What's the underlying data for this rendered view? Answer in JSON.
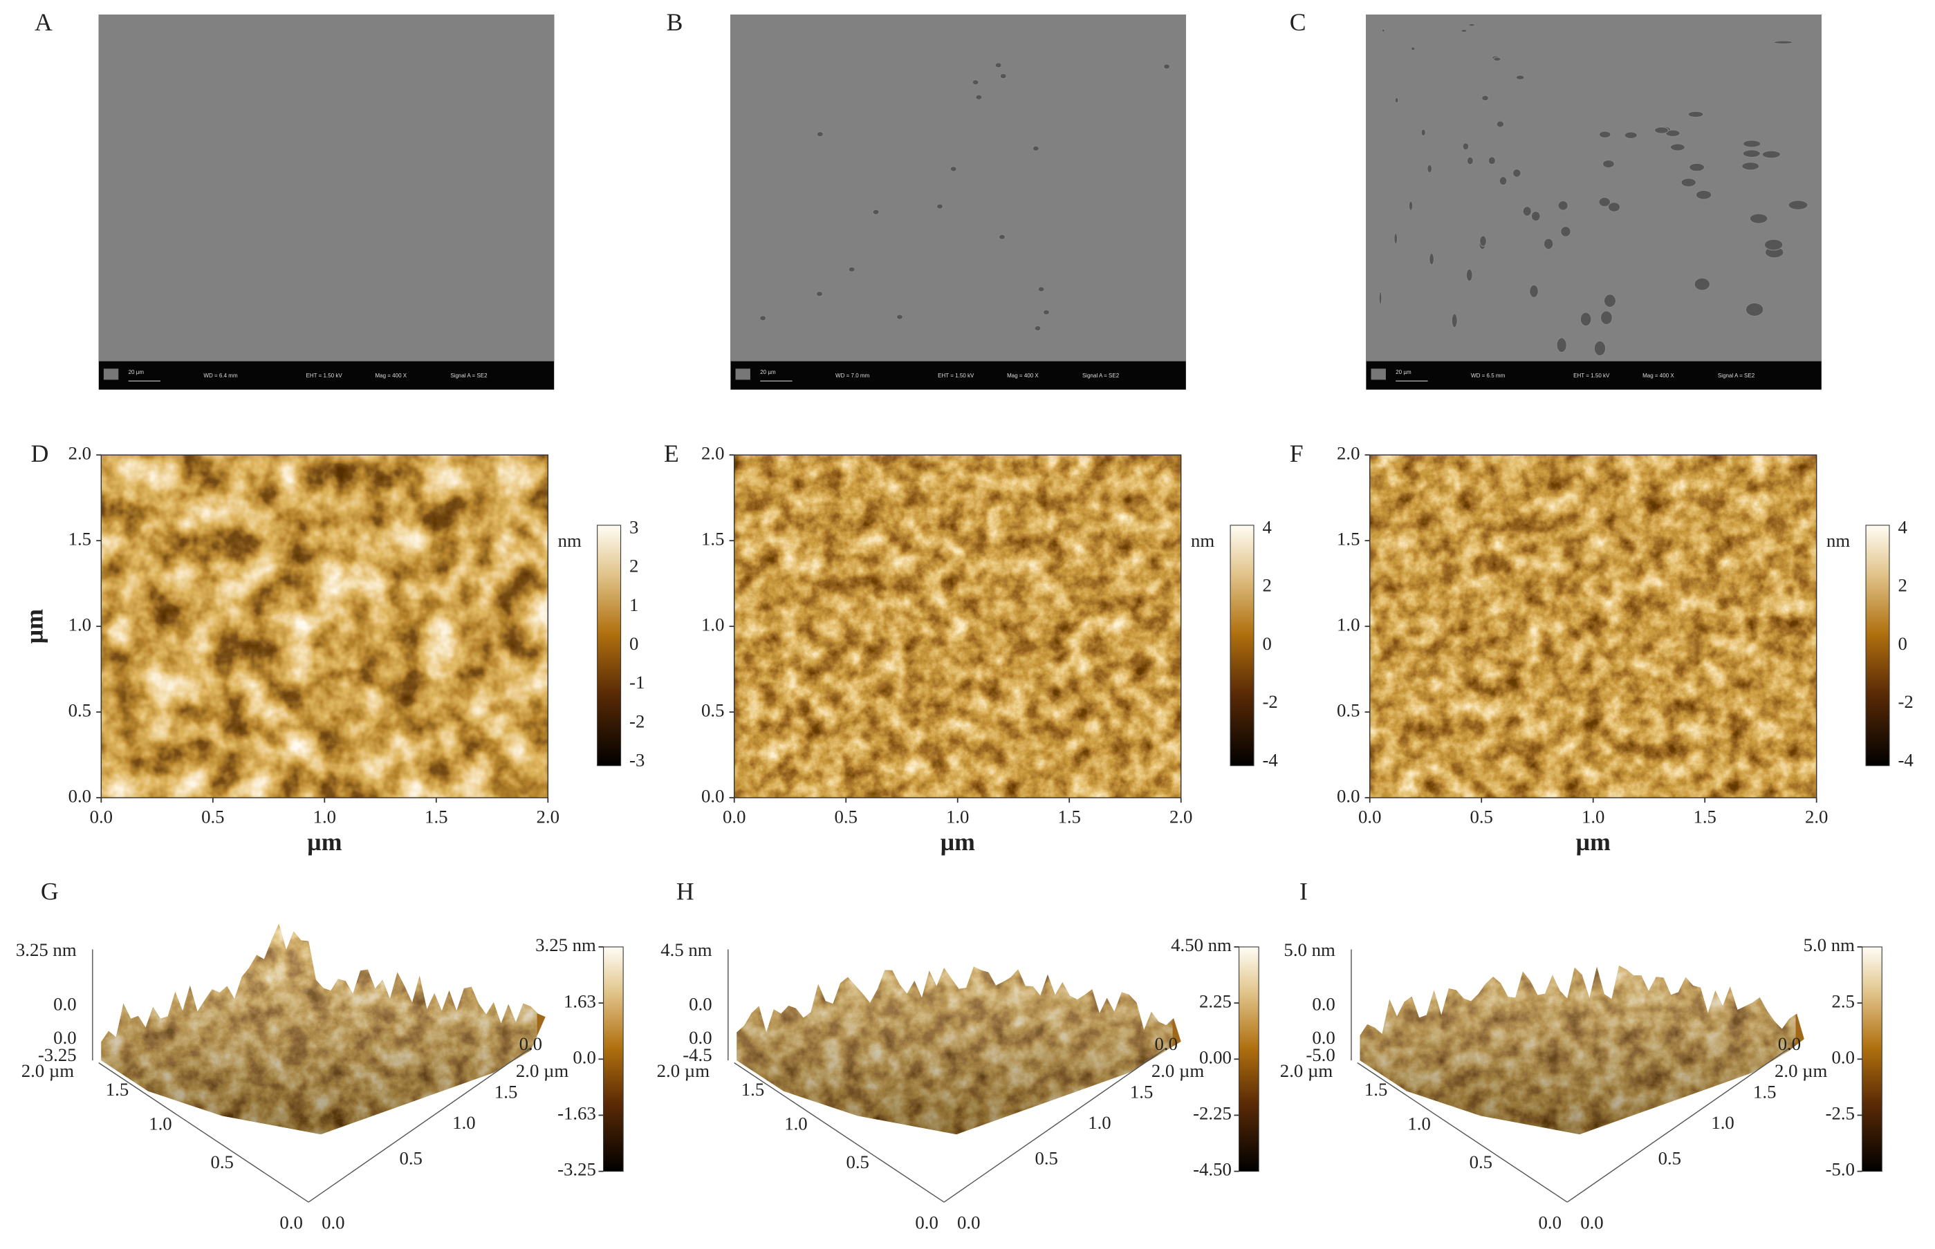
{
  "sem_panels": [
    {
      "label": "A",
      "info": [
        "20 µm",
        "WD = 6.4 mm",
        "EHT = 1.50 kV",
        "Mag = 400 X",
        "Signal A = SE2"
      ]
    },
    {
      "label": "B",
      "info": [
        "20 µm",
        "WD = 7.0 mm",
        "EHT = 1.50 kV",
        "Mag = 400 X",
        "Signal A = SE2"
      ]
    },
    {
      "label": "C",
      "info": [
        "20 µm",
        "WD = 6.5 mm",
        "EHT = 1.50 kV",
        "Mag = 400 X",
        "Signal A = SE2"
      ]
    }
  ],
  "afm_2d_panels": [
    {
      "label": "D",
      "x_ticks": [
        "0.0",
        "0.5",
        "1.0",
        "1.5",
        "2.0"
      ],
      "y_ticks": [
        "2.0",
        "1.5",
        "1.0",
        "0.5",
        "0.0"
      ],
      "x_label": "µm",
      "y_label": "µm",
      "colorbar_unit": "nm",
      "colorbar_ticks": [
        "3",
        "2",
        "1",
        "0",
        "-1",
        "-2",
        "-3"
      ]
    },
    {
      "label": "E",
      "x_ticks": [
        "0.0",
        "0.5",
        "1.0",
        "1.5",
        "2.0"
      ],
      "y_ticks": [
        "2.0",
        "1.5",
        "1.0",
        "0.5",
        "0.0"
      ],
      "x_label": "µm",
      "colorbar_unit": "nm",
      "colorbar_ticks": [
        "4",
        "2",
        "0",
        "-2",
        "-4"
      ]
    },
    {
      "label": "F",
      "x_ticks": [
        "0.0",
        "0.5",
        "1.0",
        "1.5",
        "2.0"
      ],
      "y_ticks": [
        "2.0",
        "1.5",
        "1.0",
        "0.5",
        "0.0"
      ],
      "x_label": "µm",
      "colorbar_unit": "nm",
      "colorbar_ticks": [
        "4",
        "2",
        "0",
        "-2",
        "-4"
      ]
    }
  ],
  "afm_3d_panels": [
    {
      "label": "G",
      "z_ticks": [
        "3.25 nm",
        "0.0",
        "0.0",
        "-3.25"
      ],
      "left_axis_ticks": [
        "2.0 µm",
        "1.5",
        "1.0",
        "0.5",
        "0.0"
      ],
      "right_axis_ticks": [
        "0.0",
        "2.0 µm",
        "1.5",
        "1.0",
        "0.5",
        "0.0"
      ],
      "colorbar_ticks": [
        "3.25 nm",
        "1.63",
        "0.0",
        "-1.63",
        "-3.25"
      ]
    },
    {
      "label": "H",
      "z_ticks": [
        "4.5 nm",
        "0.0",
        "0.0",
        "-4.5"
      ],
      "left_axis_ticks": [
        "2.0 µm",
        "1.5",
        "1.0",
        "0.5",
        "0.0"
      ],
      "right_axis_ticks": [
        "0.0",
        "2.0 µm",
        "1.5",
        "1.0",
        "0.5",
        "0.0"
      ],
      "colorbar_ticks": [
        "4.50 nm",
        "2.25",
        "0.00",
        "-2.25",
        "-4.50"
      ]
    },
    {
      "label": "I",
      "z_ticks": [
        "5.0 nm",
        "0.0",
        "0.0",
        "-5.0"
      ],
      "left_axis_ticks": [
        "2.0 µm",
        "1.5",
        "1.0",
        "0.5",
        "0.0"
      ],
      "right_axis_ticks": [
        "0.0",
        "2.0 µm",
        "1.5",
        "1.0",
        "0.5",
        "0.0"
      ],
      "colorbar_ticks": [
        "5.0 nm",
        "2.5",
        "0.0",
        "-2.5",
        "-5.0"
      ]
    }
  ]
}
